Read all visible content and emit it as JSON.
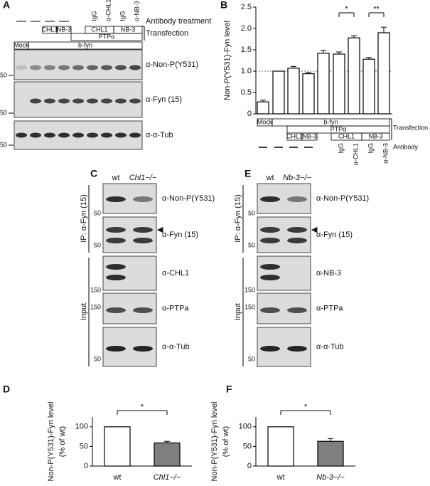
{
  "panels": {
    "A": {
      "letter": "A",
      "antibody": [
        "IgG",
        "α-CHL1",
        "IgG",
        "α-NB-3"
      ],
      "antibody_label": "Antibody treatment",
      "transfection": [
        "CHL1",
        "NB-3",
        "PTPα",
        "CHL1",
        "NB-3"
      ],
      "transfection_label": "Transfection",
      "lanes": [
        "Mock",
        "b-fyn"
      ],
      "blots": [
        "α-Non-P(Y531)",
        "α-Fyn (15)",
        "α-α-Tub"
      ],
      "markers": [
        "50",
        "50",
        "50"
      ]
    },
    "C": {
      "letter": "C",
      "genotypes": [
        "wt",
        "Chl1−/−"
      ],
      "ip_label": "IP: α-Fyn (15)",
      "input_label": "Input",
      "blots": [
        "α-Non-P(Y531)",
        "α-Fyn (15)",
        "α-CHL1",
        "α-PTPa",
        "α-α-Tub"
      ],
      "markers": [
        "50",
        "50",
        "150",
        "150",
        "50"
      ]
    },
    "E": {
      "letter": "E",
      "genotypes": [
        "wt",
        "Nb-3−/−"
      ],
      "ip_label": "IP: α-Fyn (15)",
      "input_label": "Input",
      "blots": [
        "α-Non-P(Y531)",
        "α-Fyn (15)",
        "α-NB-3",
        "α-PTPa",
        "α-α-Tub"
      ],
      "markers": [
        "50",
        "50",
        "150",
        "150",
        "50"
      ]
    }
  },
  "chart_data": [
    {
      "type": "bar",
      "letter": "B",
      "y_label": [
        "Non-P(Y531)-Fyn level"
      ],
      "categories": [
        null,
        null,
        null,
        null,
        null,
        null,
        null,
        null,
        null
      ],
      "values": [
        0.28,
        1.0,
        1.07,
        0.94,
        1.42,
        1.4,
        1.78,
        1.28,
        1.9
      ],
      "errors": [
        0.04,
        0,
        0.04,
        0.03,
        0.07,
        0.05,
        0.05,
        0.04,
        0.13
      ],
      "color": "#ffffff",
      "reference_line": 1,
      "ylim": [
        0,
        2.5
      ],
      "yticks": [
        0,
        0.5,
        {
          "value": 1,
          "label": "1.0"
        },
        1.5,
        {
          "value": 2,
          "label": "2.0"
        },
        2.5
      ],
      "annotations": [
        "*",
        "**"
      ],
      "lane_labels": {
        "transfection": [
          "Mock",
          "b-fyn",
          "PTPα",
          "CHL1",
          "NB-3",
          "CHL1",
          "NB-3"
        ],
        "antibody": [
          "IgG",
          "α-CHL1",
          "IgG",
          "α-NB-3"
        ]
      },
      "transfection_label": "Transfection",
      "antibody_label": "Antibody"
    },
    {
      "type": "bar",
      "letter": "D",
      "y_label": [
        "Non-P(Y531)-Fyn level",
        "(% of wt)"
      ],
      "categories": [
        "wt",
        "Chl1−/−"
      ],
      "values": [
        100,
        59
      ],
      "errors": [
        0,
        4
      ],
      "colors": [
        "#ffffff",
        "#7f7f7f"
      ],
      "ylim": [
        0,
        125
      ],
      "yticks": [
        0,
        50,
        100
      ],
      "annotations": [
        "*"
      ]
    },
    {
      "type": "bar",
      "letter": "F",
      "y_label": [
        "Non-P(Y531)-Fyn level",
        "(% of wt)"
      ],
      "categories": [
        "wt",
        "Nb-3−/−"
      ],
      "values": [
        100,
        63
      ],
      "errors": [
        0,
        7
      ],
      "colors": [
        "#ffffff",
        "#7f7f7f"
      ],
      "ylim": [
        0,
        125
      ],
      "yticks": [
        0,
        50,
        100
      ],
      "annotations": [
        "*"
      ]
    }
  ]
}
